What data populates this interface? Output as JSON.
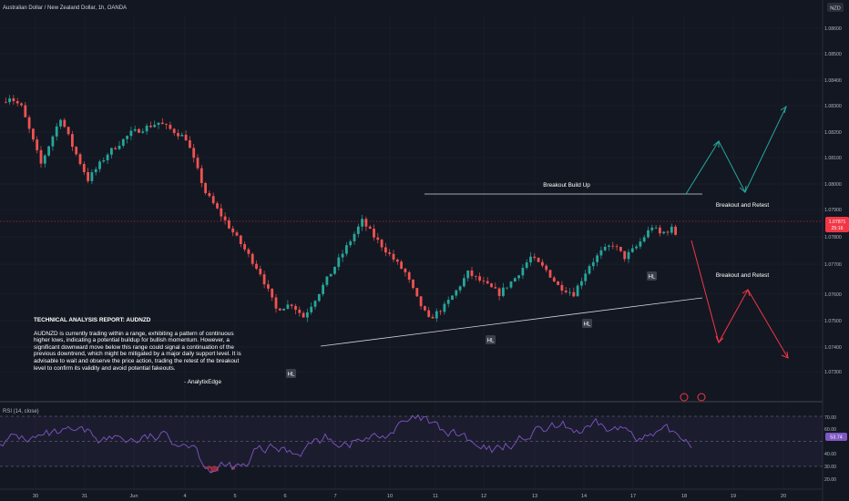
{
  "symbol_title": "Australian Dollar / New Zealand Dollar, 1h, OANDA",
  "currency": "NZD",
  "colors": {
    "background": "#131722",
    "bull": "#26a69a",
    "bear": "#ef5350",
    "rsi_line": "#7e57c2",
    "price_badge": "#f23645",
    "annotation": "#d1d4dc"
  },
  "price_badge": {
    "price": "1.07871",
    "countdown": "25:16"
  },
  "rsi": {
    "label": "RSI (14, close)",
    "current": "53.74"
  },
  "annotations": {
    "breakout_build_up": "Breakout Build Up",
    "breakout_retest_top": "Breakout and Retest",
    "breakout_retest_bottom": "Breakout and Retest",
    "hl_labels": [
      "HL",
      "HL",
      "HL",
      "HL"
    ]
  },
  "report": {
    "title": "TECHNICAL ANALYSIS REPORT: AUDNZD",
    "body": "AUDNZD is currently trading within a range, exhibiting a pattern of continuous higher lows, indicating a potential buildup for bullish momentum. However, a significant downward move below this range could signal a continuation of the previous downtrend, which might be mitigated by a major daily support level. It is advisable to wait and observe the price action, trading the retest of the breakout level to confirm its validity and avoid potential fakeouts.",
    "signature": "- AnalytixEdge"
  },
  "chart_data": {
    "type": "candlestick",
    "title": "Australian Dollar / New Zealand Dollar, 1h, OANDA",
    "y_axis": {
      "ticks": [
        "1.08600",
        "1.08500",
        "1.08400",
        "1.08300",
        "1.08200",
        "1.08100",
        "1.08000",
        "1.07900",
        "1.07800",
        "1.07700",
        "1.07600",
        "1.07500",
        "1.07400",
        "1.07300"
      ],
      "range": [
        1.0724,
        1.0871
      ]
    },
    "x_axis": {
      "ticks": [
        "30",
        "31",
        "Jun",
        "4",
        "5",
        "6",
        "7",
        "10",
        "11",
        "12",
        "13",
        "14",
        "17",
        "18",
        "19",
        "20"
      ]
    },
    "price_path": [
      [
        0,
        1.0838
      ],
      [
        2,
        1.084
      ],
      [
        5,
        1.0836
      ],
      [
        10,
        1.0814
      ],
      [
        15,
        1.0832
      ],
      [
        18,
        1.0821
      ],
      [
        22,
        1.0808
      ],
      [
        27,
        1.0818
      ],
      [
        33,
        1.0826
      ],
      [
        40,
        1.083
      ],
      [
        47,
        1.0824
      ],
      [
        52,
        1.0803
      ],
      [
        57,
        1.0792
      ],
      [
        62,
        1.0781
      ],
      [
        66,
        1.0772
      ],
      [
        70,
        1.0758
      ],
      [
        74,
        1.076
      ],
      [
        77,
        1.0755
      ],
      [
        80,
        1.0762
      ],
      [
        84,
        1.0772
      ],
      [
        88,
        1.0782
      ],
      [
        92,
        1.0792
      ],
      [
        95,
        1.0786
      ],
      [
        99,
        1.0779
      ],
      [
        103,
        1.0772
      ],
      [
        106,
        1.0762
      ],
      [
        109,
        1.0754
      ],
      [
        113,
        1.0759
      ],
      [
        116,
        1.0765
      ],
      [
        119,
        1.0772
      ],
      [
        123,
        1.0768
      ],
      [
        127,
        1.0764
      ],
      [
        131,
        1.077
      ],
      [
        135,
        1.0778
      ],
      [
        139,
        1.0773
      ],
      [
        142,
        1.0767
      ],
      [
        146,
        1.0764
      ],
      [
        150,
        1.0775
      ],
      [
        153,
        1.078
      ],
      [
        156,
        1.0783
      ],
      [
        159,
        1.0778
      ],
      [
        162,
        1.0782
      ],
      [
        166,
        1.079
      ],
      [
        168,
        1.0787
      ],
      [
        171,
        1.0789
      ],
      [
        172,
        1.0787
      ]
    ],
    "rsi_levels": {
      "upper": 70,
      "middle": 50,
      "lower": 30
    },
    "rsi_axis_ticks": [
      "70.00",
      "60.00",
      "40.00",
      "30.00",
      "20.00"
    ],
    "trendlines": {
      "range_top": {
        "price": 1.07973
      },
      "rising_support": {
        "from_price": 1.07429,
        "to_price": 1.07627
      }
    },
    "projections": {
      "bullish": [
        1.07973,
        1.08167,
        1.07991,
        1.08304
      ],
      "bearish": [
        1.0782,
        1.07439,
        1.07619,
        1.07375
      ]
    }
  }
}
